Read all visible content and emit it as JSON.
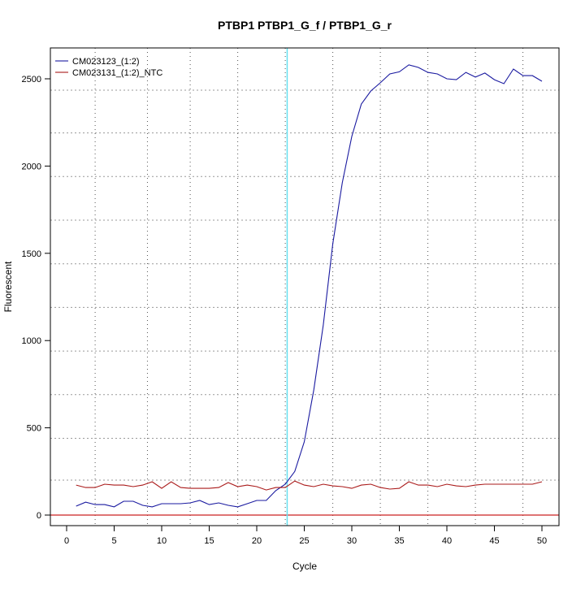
{
  "chart_data": {
    "type": "line",
    "title": "PTBP1  PTBP1_G_f / PTBP1_G_r",
    "xlabel": "Cycle",
    "ylabel": "Fluorescent",
    "xlim": [
      -2,
      52
    ],
    "ylim": [
      -60,
      2670
    ],
    "xticks": [
      0,
      5,
      10,
      15,
      20,
      25,
      30,
      35,
      40,
      45,
      50
    ],
    "yticks": [
      0,
      500,
      1000,
      1500,
      2000,
      2500
    ],
    "grid": true,
    "grid_x": [
      3,
      8.5,
      13,
      18,
      23,
      28,
      33,
      38,
      43,
      48
    ],
    "grid_y": [
      200,
      440,
      690,
      940,
      1190,
      1440,
      1690,
      1940,
      2190,
      2435
    ],
    "threshold": 0,
    "threshold_color": "#cc2222",
    "cycle_marker": 23.2,
    "cycle_marker_color": "#66e0f0",
    "legend_position": "top-left",
    "x": [
      1,
      2,
      3,
      4,
      5,
      6,
      7,
      8,
      9,
      10,
      11,
      12,
      13,
      14,
      15,
      16,
      17,
      18,
      19,
      20,
      21,
      22,
      23,
      24,
      25,
      26,
      27,
      28,
      29,
      30,
      31,
      32,
      33,
      34,
      35,
      36,
      37,
      38,
      39,
      40,
      41,
      42,
      43,
      44,
      45,
      46,
      47,
      48,
      49,
      50
    ],
    "series": [
      {
        "name": "CM023123_(1:2)",
        "color": "#1a1aa0",
        "values": [
          51,
          74,
          60,
          60,
          47,
          79,
          79,
          56,
          47,
          65,
          65,
          65,
          70,
          84,
          60,
          70,
          56,
          47,
          65,
          84,
          84,
          140,
          177,
          250,
          420,
          717,
          1090,
          1555,
          1905,
          2170,
          2355,
          2430,
          2477,
          2528,
          2540,
          2580,
          2565,
          2537,
          2528,
          2500,
          2495,
          2537,
          2510,
          2533,
          2495,
          2472,
          2556,
          2518,
          2518,
          2486
        ]
      },
      {
        "name": "CM023131_(1:2)_NTC",
        "color": "#aa1a1a",
        "values": [
          172,
          158,
          158,
          177,
          172,
          172,
          163,
          172,
          191,
          153,
          191,
          158,
          153,
          153,
          153,
          158,
          186,
          163,
          172,
          163,
          144,
          158,
          158,
          195,
          172,
          163,
          177,
          167,
          163,
          153,
          172,
          177,
          158,
          149,
          153,
          191,
          172,
          172,
          163,
          177,
          167,
          163,
          172,
          177,
          177,
          177,
          177,
          177,
          177,
          191
        ]
      }
    ]
  }
}
